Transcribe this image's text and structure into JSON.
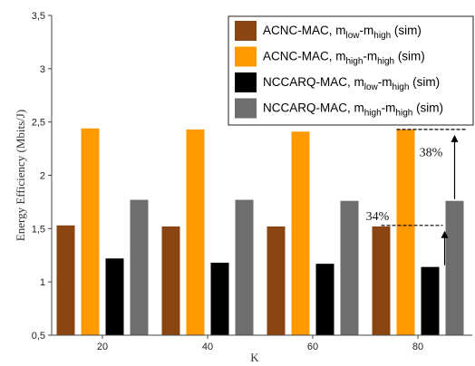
{
  "chart_data": {
    "type": "bar",
    "title": "",
    "xlabel": "K",
    "ylabel": "Energy Efficiency (Mbits/J)",
    "categories": [
      "20",
      "40",
      "60",
      "80"
    ],
    "ylim": [
      0.5,
      3.5
    ],
    "yticks": [
      "0,5",
      "1",
      "1,5",
      "2",
      "2,5",
      "3",
      "3,5"
    ],
    "yticks_values": [
      0.5,
      1,
      1.5,
      2,
      2.5,
      3,
      3.5
    ],
    "grid": false,
    "legend_position": "top-right",
    "series": [
      {
        "name": "ACNC-MAC, m_low-m_high (sim)",
        "legend": {
          "base": "ACNC-MAC, m",
          "s1": "low",
          "mid": "-m",
          "s2": "high",
          "tail": " (sim)"
        },
        "color": "#8B4513",
        "values": [
          1.53,
          1.52,
          1.52,
          1.52
        ]
      },
      {
        "name": "ACNC-MAC, m_high-m_high (sim)",
        "legend": {
          "base": "ACNC-MAC, m",
          "s1": "high",
          "mid": "-m",
          "s2": "high",
          "tail": " (sim)"
        },
        "color": "#FF9900",
        "values": [
          2.44,
          2.43,
          2.41,
          2.43
        ]
      },
      {
        "name": "NCCARQ-MAC, m_low-m_high (sim)",
        "legend": {
          "base": "NCCARQ-MAC, m",
          "s1": "low",
          "mid": "-m",
          "s2": "high",
          "tail": " (sim)"
        },
        "color": "#000000",
        "values": [
          1.22,
          1.18,
          1.17,
          1.14
        ]
      },
      {
        "name": "NCCARQ-MAC, m_high-m_high (sim)",
        "legend": {
          "base": "NCCARQ-MAC, m",
          "s1": "high",
          "mid": "-m",
          "s2": "high",
          "tail": " (sim)"
        },
        "color": "#6E6E6E",
        "values": [
          1.77,
          1.77,
          1.76,
          1.76
        ]
      }
    ],
    "annotations": [
      {
        "text": "34%",
        "from_value": 1.14,
        "to_value": 1.53,
        "category": "80"
      },
      {
        "text": "38%",
        "from_value": 1.76,
        "to_value": 2.43,
        "category": "80"
      }
    ]
  }
}
